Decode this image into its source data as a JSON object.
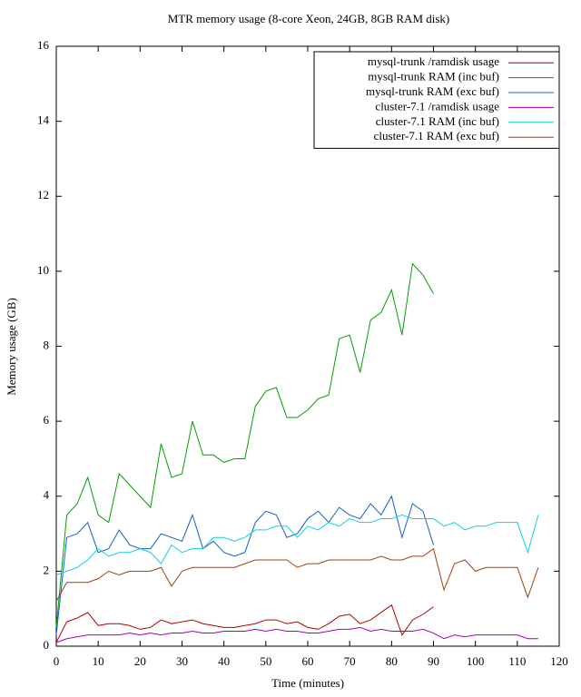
{
  "chart_data": {
    "type": "line",
    "title": "MTR memory usage (8-core Xeon, 24GB, 8GB RAM disk)",
    "x_label": "Time (minutes)",
    "y_label": "Memory usage (GB)",
    "x": [
      0,
      2.5,
      5,
      7.5,
      10,
      12.5,
      15,
      17.5,
      20,
      22.5,
      25,
      27.5,
      30,
      32.5,
      35,
      37.5,
      40,
      42.5,
      45,
      47.5,
      50,
      52.5,
      55,
      57.5,
      60,
      62.5,
      65,
      67.5,
      70,
      72.5,
      75,
      77.5,
      80,
      82.5,
      85,
      87.5,
      90,
      92.5,
      95,
      97.5,
      100,
      102.5,
      105,
      107.5,
      110,
      112.5,
      115
    ],
    "xlim": [
      0,
      120
    ],
    "xticks": [
      0,
      10,
      20,
      30,
      40,
      50,
      60,
      70,
      80,
      90,
      100,
      110,
      120
    ],
    "ylim": [
      0,
      16
    ],
    "yticks": [
      0,
      2,
      4,
      6,
      8,
      10,
      12,
      14,
      16
    ],
    "legend": "top-right",
    "series": [
      {
        "name": "mysql-trunk /ramdisk usage",
        "color": "#b00000",
        "values": [
          0.1,
          0.65,
          0.75,
          0.9,
          0.55,
          0.6,
          0.6,
          0.55,
          0.45,
          0.5,
          0.7,
          0.6,
          0.65,
          0.7,
          0.6,
          0.55,
          0.5,
          0.5,
          0.55,
          0.6,
          0.7,
          0.7,
          0.6,
          0.65,
          0.5,
          0.45,
          0.6,
          0.8,
          0.85,
          0.6,
          0.7,
          0.9,
          1.1,
          0.3,
          0.7,
          0.85,
          1.05,
          null,
          null,
          null,
          null,
          null,
          null,
          null,
          null,
          null,
          null
        ]
      },
      {
        "name": "mysql-trunk RAM (inc buf)",
        "color": "#00a000",
        "values": [
          0.5,
          3.5,
          3.8,
          4.5,
          3.5,
          3.3,
          4.6,
          4.3,
          4.0,
          3.7,
          5.4,
          4.5,
          4.6,
          6.0,
          5.1,
          5.1,
          4.9,
          5.0,
          5.0,
          6.4,
          6.8,
          6.9,
          6.1,
          6.1,
          6.3,
          6.6,
          6.7,
          8.2,
          8.3,
          7.3,
          8.7,
          8.9,
          9.5,
          8.3,
          10.2,
          9.9,
          9.4,
          null,
          null,
          null,
          null,
          null,
          null,
          null,
          null,
          null,
          null
        ]
      },
      {
        "name": "mysql-trunk RAM (exc buf)",
        "color": "#1060c8",
        "values": [
          0.3,
          2.9,
          3.0,
          3.3,
          2.5,
          2.6,
          3.1,
          2.7,
          2.6,
          2.6,
          3.0,
          2.9,
          2.8,
          3.5,
          2.6,
          2.8,
          2.5,
          2.4,
          2.5,
          3.3,
          3.6,
          3.5,
          2.9,
          3.0,
          3.4,
          3.6,
          3.3,
          3.7,
          3.5,
          3.4,
          3.8,
          3.5,
          4.0,
          2.9,
          3.8,
          3.6,
          2.7,
          null,
          null,
          null,
          null,
          null,
          null,
          null,
          null,
          null,
          null
        ]
      },
      {
        "name": "cluster-7.1 /ramdisk usage",
        "color": "#a000c0",
        "values": [
          0.1,
          0.2,
          0.25,
          0.3,
          0.3,
          0.3,
          0.3,
          0.35,
          0.3,
          0.35,
          0.3,
          0.35,
          0.35,
          0.4,
          0.35,
          0.35,
          0.4,
          0.4,
          0.4,
          0.45,
          0.4,
          0.45,
          0.4,
          0.4,
          0.35,
          0.35,
          0.4,
          0.45,
          0.45,
          0.5,
          0.4,
          0.45,
          0.4,
          0.4,
          0.4,
          0.45,
          0.35,
          0.2,
          0.3,
          0.25,
          0.3,
          0.3,
          0.3,
          0.3,
          0.3,
          0.2,
          0.2
        ]
      },
      {
        "name": "cluster-7.1 RAM (inc buf)",
        "color": "#10d0e0",
        "values": [
          1.9,
          2.0,
          2.1,
          2.3,
          2.6,
          2.4,
          2.5,
          2.5,
          2.6,
          2.5,
          2.2,
          2.7,
          2.5,
          2.6,
          2.6,
          2.9,
          2.9,
          2.8,
          2.9,
          3.1,
          3.1,
          3.2,
          3.2,
          2.9,
          3.2,
          3.1,
          3.3,
          3.2,
          3.4,
          3.3,
          3.3,
          3.4,
          3.4,
          3.5,
          3.4,
          3.4,
          3.4,
          3.2,
          3.3,
          3.1,
          3.2,
          3.2,
          3.3,
          3.3,
          3.3,
          2.5,
          3.5
        ]
      },
      {
        "name": "cluster-7.1 RAM (exc buf)",
        "color": "#a04010",
        "values": [
          1.2,
          1.7,
          1.7,
          1.7,
          1.8,
          2.0,
          1.9,
          2.0,
          2.0,
          2.0,
          2.1,
          1.6,
          2.0,
          2.1,
          2.1,
          2.1,
          2.1,
          2.1,
          2.2,
          2.3,
          2.3,
          2.3,
          2.3,
          2.1,
          2.2,
          2.2,
          2.3,
          2.3,
          2.3,
          2.3,
          2.3,
          2.4,
          2.3,
          2.3,
          2.4,
          2.4,
          2.6,
          1.5,
          2.2,
          2.3,
          2.0,
          2.1,
          2.1,
          2.1,
          2.1,
          1.3,
          2.1
        ]
      }
    ]
  }
}
